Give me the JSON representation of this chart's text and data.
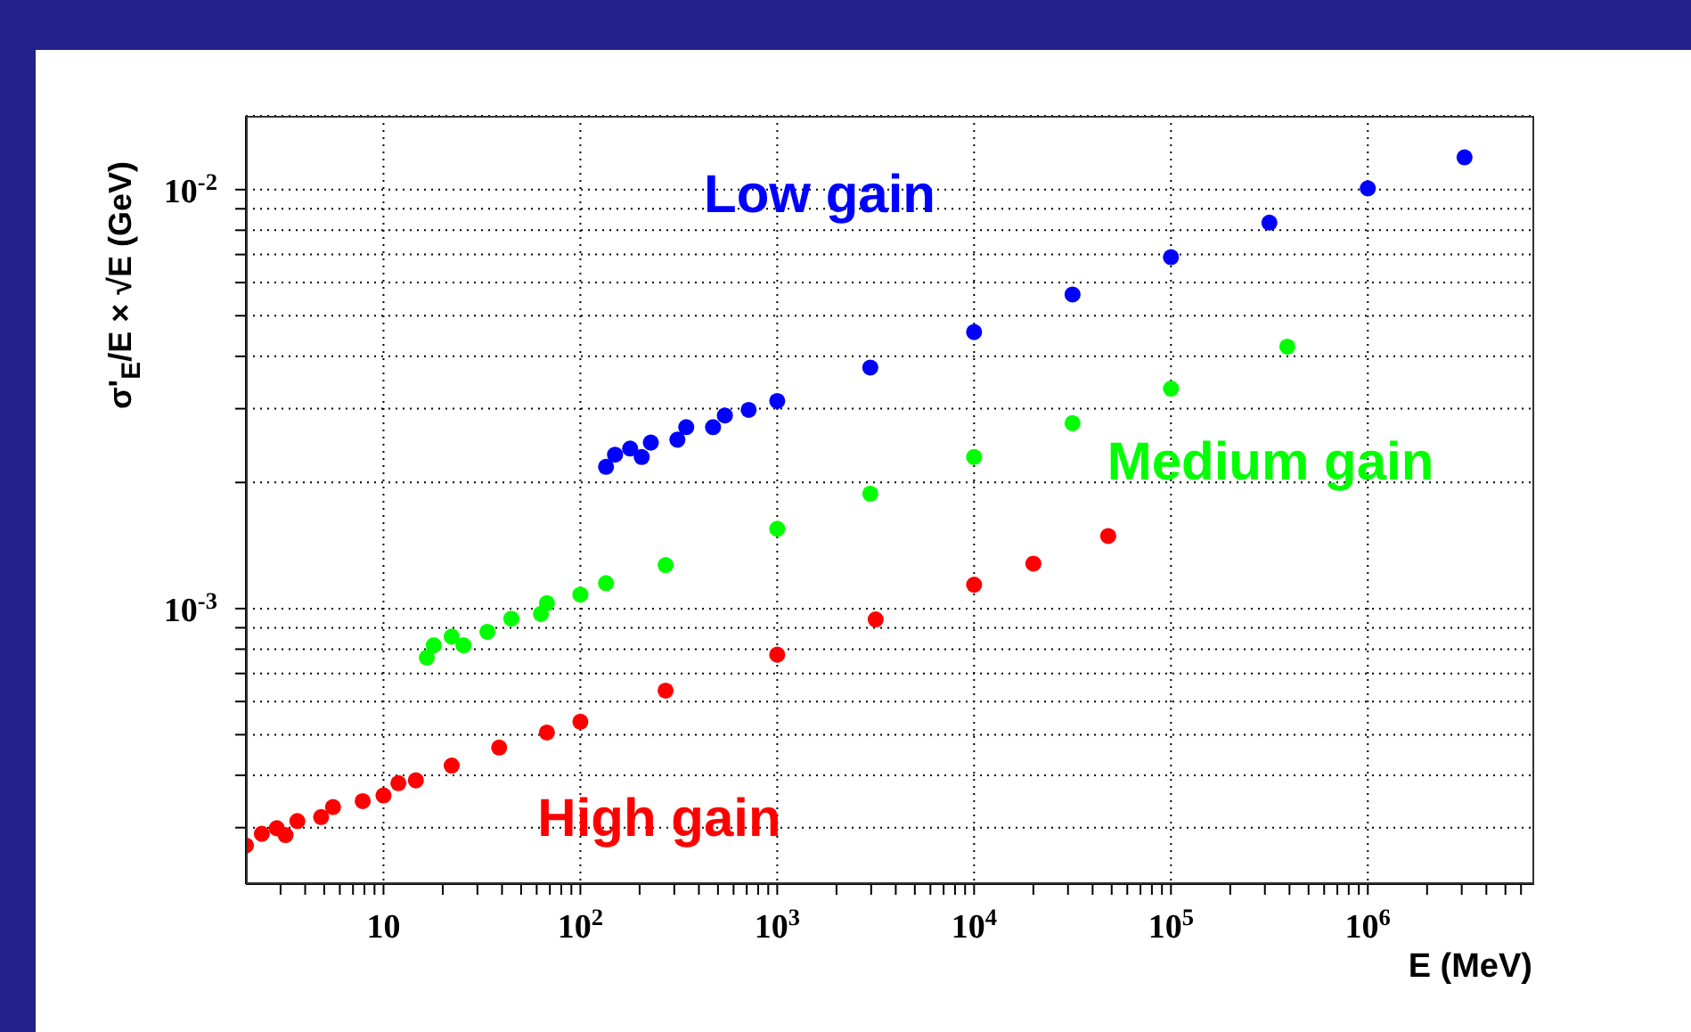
{
  "chart_data": {
    "type": "scatter",
    "xlabel": "E (MeV)",
    "ylabel": "σ'$_{E}$/E × √E (GeV)",
    "log": "xy",
    "grid": true,
    "marker": "circle",
    "xlim": [
      2,
      7000000
    ],
    "ylim": [
      0.00022,
      0.015
    ],
    "xticks": [
      {
        "value": 3,
        "label": null
      },
      {
        "value": 4,
        "label": null
      },
      {
        "value": 5,
        "label": null
      },
      {
        "value": 6,
        "label": null
      },
      {
        "value": 7,
        "label": null
      },
      {
        "value": 8,
        "label": null
      },
      {
        "value": 9,
        "label": null
      },
      10,
      {
        "value": 20,
        "label": null
      },
      {
        "value": 30,
        "label": null
      },
      {
        "value": 40,
        "label": null
      },
      {
        "value": 50,
        "label": null
      },
      {
        "value": 60,
        "label": null
      },
      {
        "value": 70,
        "label": null
      },
      {
        "value": 80,
        "label": null
      },
      {
        "value": 90,
        "label": null
      },
      {
        "value": 100,
        "label": "10$^{2}$"
      },
      {
        "value": 200,
        "label": null
      },
      {
        "value": 300,
        "label": null
      },
      {
        "value": 400,
        "label": null
      },
      {
        "value": 500,
        "label": null
      },
      {
        "value": 600,
        "label": null
      },
      {
        "value": 700,
        "label": null
      },
      {
        "value": 800,
        "label": null
      },
      {
        "value": 900,
        "label": null
      },
      {
        "value": 1000,
        "label": "10$^{3}$"
      },
      {
        "value": 2000,
        "label": null
      },
      {
        "value": 3000,
        "label": null
      },
      {
        "value": 4000,
        "label": null
      },
      {
        "value": 5000,
        "label": null
      },
      {
        "value": 6000,
        "label": null
      },
      {
        "value": 7000,
        "label": null
      },
      {
        "value": 8000,
        "label": null
      },
      {
        "value": 9000,
        "label": null
      },
      {
        "value": 10000,
        "label": "10$^{4}$"
      },
      {
        "value": 20000,
        "label": null
      },
      {
        "value": 30000,
        "label": null
      },
      {
        "value": 40000,
        "label": null
      },
      {
        "value": 50000,
        "label": null
      },
      {
        "value": 60000,
        "label": null
      },
      {
        "value": 70000,
        "label": null
      },
      {
        "value": 80000,
        "label": null
      },
      {
        "value": 90000,
        "label": null
      },
      {
        "value": 100000,
        "label": "10$^{5}$"
      },
      {
        "value": 200000,
        "label": null
      },
      {
        "value": 300000,
        "label": null
      },
      {
        "value": 400000,
        "label": null
      },
      {
        "value": 500000,
        "label": null
      },
      {
        "value": 600000,
        "label": null
      },
      {
        "value": 700000,
        "label": null
      },
      {
        "value": 800000,
        "label": null
      },
      {
        "value": 900000,
        "label": null
      },
      {
        "value": 1000000,
        "label": "10$^{6}$"
      },
      {
        "value": 2000000,
        "label": null
      },
      {
        "value": 3000000,
        "label": null
      },
      {
        "value": 4000000,
        "label": null
      },
      {
        "value": 5000000,
        "label": null
      },
      {
        "value": 6000000,
        "label": null
      }
    ],
    "yticks": [
      {
        "value": 0.0003,
        "label": null
      },
      {
        "value": 0.0004,
        "label": null
      },
      {
        "value": 0.0005,
        "label": null
      },
      {
        "value": 0.0006,
        "label": null
      },
      {
        "value": 0.0007,
        "label": null
      },
      {
        "value": 0.0008,
        "label": null
      },
      {
        "value": 0.0009,
        "label": null
      },
      {
        "value": 0.001,
        "label": "10$^{-3}$"
      },
      {
        "value": 0.002,
        "label": null
      },
      {
        "value": 0.003,
        "label": null
      },
      {
        "value": 0.004,
        "label": null
      },
      {
        "value": 0.005,
        "label": null
      },
      {
        "value": 0.006,
        "label": null
      },
      {
        "value": 0.007,
        "label": null
      },
      {
        "value": 0.008,
        "label": null
      },
      {
        "value": 0.009,
        "label": null
      },
      {
        "value": 0.01,
        "label": "10$^{-2}$"
      }
    ],
    "series": [
      {
        "name": "Low gain",
        "color": "#0000ff",
        "x": [
          135,
          150,
          179,
          205,
          228,
          311,
          345,
          472,
          542,
          716,
          1000,
          2970,
          10000,
          31620,
          100000,
          316200,
          1000000,
          3100000
        ],
        "values": [
          0.00218,
          0.00233,
          0.00241,
          0.0023,
          0.00249,
          0.00253,
          0.00271,
          0.00271,
          0.00289,
          0.00298,
          0.00313,
          0.00376,
          0.00457,
          0.00562,
          0.0069,
          0.00834,
          0.01007,
          0.01194
        ]
      },
      {
        "name": "Medium gain",
        "color": "#00ff00",
        "x": [
          16.6,
          18,
          22.2,
          25.5,
          33.7,
          44.6,
          63,
          67.6,
          100,
          135,
          271,
          1000,
          2970,
          10000,
          31620,
          100000,
          390000
        ],
        "values": [
          0.000764,
          0.000817,
          0.000857,
          0.000817,
          0.00088,
          0.000946,
          0.000971,
          0.00103,
          0.00108,
          0.00115,
          0.00127,
          0.00155,
          0.00188,
          0.0023,
          0.00277,
          0.00335,
          0.00422
        ]
      },
      {
        "name": "High gain",
        "color": "#ff0000",
        "x": [
          2,
          2.41,
          2.87,
          3.18,
          3.65,
          4.82,
          5.54,
          7.84,
          10,
          11.9,
          14.6,
          22.2,
          38.7,
          67.6,
          100,
          271,
          1000,
          3162,
          10000,
          20000,
          48000
        ],
        "values": [
          0.000272,
          0.00029,
          0.000299,
          0.000288,
          0.000311,
          0.000318,
          0.000336,
          0.000347,
          0.000358,
          0.000383,
          0.000389,
          0.000422,
          0.000466,
          0.000506,
          0.000537,
          0.000637,
          0.000776,
          0.000942,
          0.00114,
          0.00128,
          0.00149
        ]
      }
    ]
  }
}
